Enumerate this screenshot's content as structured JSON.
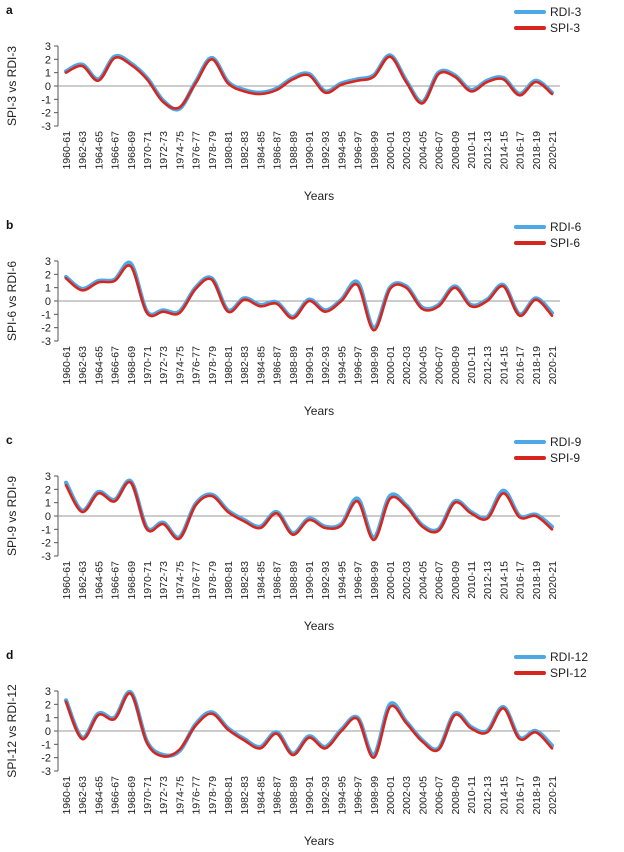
{
  "colors": {
    "rdi": "#4DA8E8",
    "spi": "#D7261E",
    "zero_line": "#9a9a9a",
    "axis": "#555555"
  },
  "chart_data": [
    {
      "type": "line",
      "panel": "a",
      "ylabel": "SPI-3 vs RDI-3",
      "xlabel": "Years",
      "ylim": [
        -3,
        3
      ],
      "yticks": [
        -3,
        -2,
        -1,
        0,
        1,
        2,
        3
      ],
      "legend_position": "top-right",
      "categories": [
        "1960-61",
        "1962-63",
        "1964-65",
        "1966-67",
        "1968-69",
        "1970-71",
        "1972-73",
        "1974-75",
        "1976-77",
        "1978-79",
        "1980-81",
        "1982-83",
        "1984-85",
        "1986-87",
        "1988-89",
        "1990-91",
        "1992-93",
        "1994-95",
        "1996-97",
        "1998-99",
        "2000-01",
        "2002-03",
        "2004-05",
        "2006-07",
        "2008-09",
        "2010-11",
        "2012-13",
        "2014-15",
        "2016-17",
        "2018-19",
        "2020-21"
      ],
      "series": [
        {
          "name": "RDI-3",
          "values": [
            1.1,
            1.6,
            0.5,
            2.2,
            1.7,
            0.6,
            -1.1,
            -1.7,
            0.3,
            2.1,
            0.3,
            -0.3,
            -0.5,
            -0.2,
            0.6,
            0.9,
            -0.4,
            0.2,
            0.5,
            0.8,
            2.3,
            0.4,
            -1.2,
            1.0,
            0.8,
            -0.3,
            0.4,
            0.6,
            -0.6,
            0.4,
            -0.5
          ]
        },
        {
          "name": "SPI-3",
          "values": [
            1.0,
            1.5,
            0.4,
            2.1,
            1.6,
            0.5,
            -1.2,
            -1.6,
            0.2,
            2.0,
            0.2,
            -0.4,
            -0.6,
            -0.3,
            0.5,
            0.8,
            -0.5,
            0.1,
            0.4,
            0.7,
            2.2,
            0.3,
            -1.3,
            0.9,
            0.7,
            -0.4,
            0.3,
            0.5,
            -0.7,
            0.3,
            -0.6
          ]
        }
      ]
    },
    {
      "type": "line",
      "panel": "b",
      "ylabel": "SPI-6 vs RDI-6",
      "xlabel": "Years",
      "ylim": [
        -3,
        3
      ],
      "yticks": [
        -3,
        -2,
        -1,
        0,
        1,
        2,
        3
      ],
      "legend_position": "top-right",
      "categories": [
        "1960-61",
        "1962-63",
        "1964-65",
        "1966-67",
        "1968-69",
        "1970-71",
        "1972-73",
        "1974-75",
        "1976-77",
        "1978-79",
        "1980-81",
        "1982-83",
        "1984-85",
        "1986-87",
        "1988-89",
        "1990-91",
        "1992-93",
        "1994-95",
        "1996-97",
        "1998-99",
        "2000-01",
        "2002-03",
        "2004-05",
        "2006-07",
        "2008-09",
        "2010-11",
        "2012-13",
        "2014-15",
        "2016-17",
        "2018-19",
        "2020-21"
      ],
      "series": [
        {
          "name": "RDI-6",
          "values": [
            1.8,
            0.9,
            1.5,
            1.6,
            2.8,
            -0.8,
            -0.7,
            -0.8,
            1.0,
            1.7,
            -0.7,
            0.2,
            -0.3,
            -0.1,
            -1.2,
            0.1,
            -0.7,
            0.1,
            1.4,
            -2.0,
            1.0,
            1.1,
            -0.5,
            -0.3,
            1.1,
            -0.3,
            0.1,
            1.2,
            -1.0,
            0.2,
            -0.9
          ]
        },
        {
          "name": "SPI-6",
          "values": [
            1.7,
            0.8,
            1.4,
            1.5,
            2.6,
            -0.9,
            -0.8,
            -0.9,
            0.9,
            1.6,
            -0.8,
            0.1,
            -0.4,
            -0.2,
            -1.3,
            0.0,
            -0.8,
            0.0,
            1.2,
            -2.2,
            0.9,
            1.0,
            -0.6,
            -0.4,
            1.0,
            -0.4,
            0.0,
            1.1,
            -1.1,
            0.1,
            -1.1
          ]
        }
      ]
    },
    {
      "type": "line",
      "panel": "c",
      "ylabel": "SPI-9 vs RDI-9",
      "xlabel": "Years",
      "ylim": [
        -3,
        3
      ],
      "yticks": [
        -3,
        -2,
        -1,
        0,
        1,
        2,
        3
      ],
      "legend_position": "top-right",
      "categories": [
        "1960-61",
        "1962-63",
        "1964-65",
        "1966-67",
        "1968-69",
        "1970-71",
        "1972-73",
        "1974-75",
        "1976-77",
        "1978-79",
        "1980-81",
        "1982-83",
        "1984-85",
        "1986-87",
        "1988-89",
        "1990-91",
        "1992-93",
        "1994-95",
        "1996-97",
        "1998-99",
        "2000-01",
        "2002-03",
        "2004-05",
        "2006-07",
        "2008-09",
        "2010-11",
        "2012-13",
        "2014-15",
        "2016-17",
        "2018-19",
        "2020-21"
      ],
      "series": [
        {
          "name": "RDI-9",
          "values": [
            2.5,
            0.4,
            1.8,
            1.2,
            2.6,
            -0.9,
            -0.5,
            -1.6,
            0.9,
            1.6,
            0.4,
            -0.3,
            -0.8,
            0.3,
            -1.3,
            -0.2,
            -0.8,
            -0.6,
            1.3,
            -1.6,
            1.5,
            0.8,
            -0.7,
            -1.0,
            1.1,
            0.3,
            -0.1,
            1.9,
            0.0,
            0.1,
            -0.8
          ]
        },
        {
          "name": "SPI-9",
          "values": [
            2.3,
            0.3,
            1.7,
            1.1,
            2.5,
            -1.0,
            -0.6,
            -1.7,
            0.8,
            1.5,
            0.3,
            -0.4,
            -0.9,
            0.2,
            -1.4,
            -0.3,
            -0.9,
            -0.7,
            1.1,
            -1.8,
            1.3,
            0.7,
            -0.8,
            -1.1,
            1.0,
            0.2,
            -0.2,
            1.7,
            -0.1,
            0.0,
            -1.0
          ]
        }
      ]
    },
    {
      "type": "line",
      "panel": "d",
      "ylabel": "SPI-12 vs RDI-12",
      "xlabel": "Years",
      "ylim": [
        -3,
        3
      ],
      "yticks": [
        -3,
        -2,
        -1,
        0,
        1,
        2,
        3
      ],
      "legend_position": "top-right",
      "categories": [
        "1960-61",
        "1962-63",
        "1964-65",
        "1966-67",
        "1968-69",
        "1970-71",
        "1972-73",
        "1974-75",
        "1976-77",
        "1978-79",
        "1980-81",
        "1982-83",
        "1984-85",
        "1986-87",
        "1988-89",
        "1990-91",
        "1992-93",
        "1994-95",
        "1996-97",
        "1998-99",
        "2000-01",
        "2002-03",
        "2004-05",
        "2006-07",
        "2008-09",
        "2010-11",
        "2012-13",
        "2014-15",
        "2016-17",
        "2018-19",
        "2020-21"
      ],
      "series": [
        {
          "name": "RDI-12",
          "values": [
            2.3,
            -0.5,
            1.3,
            1.0,
            2.9,
            -0.8,
            -1.8,
            -1.5,
            0.5,
            1.4,
            0.2,
            -0.6,
            -1.2,
            -0.1,
            -1.7,
            -0.4,
            -1.2,
            0.1,
            1.0,
            -1.8,
            2.0,
            0.7,
            -0.7,
            -1.3,
            1.3,
            0.3,
            0.0,
            1.8,
            -0.5,
            0.0,
            -1.1
          ]
        },
        {
          "name": "SPI-12",
          "values": [
            2.2,
            -0.6,
            1.2,
            0.9,
            2.8,
            -0.9,
            -1.9,
            -1.4,
            0.4,
            1.3,
            0.1,
            -0.7,
            -1.3,
            -0.2,
            -1.8,
            -0.5,
            -1.3,
            0.0,
            0.9,
            -2.0,
            1.8,
            0.6,
            -0.8,
            -1.4,
            1.2,
            0.2,
            -0.1,
            1.7,
            -0.6,
            -0.1,
            -1.3
          ]
        }
      ]
    }
  ]
}
